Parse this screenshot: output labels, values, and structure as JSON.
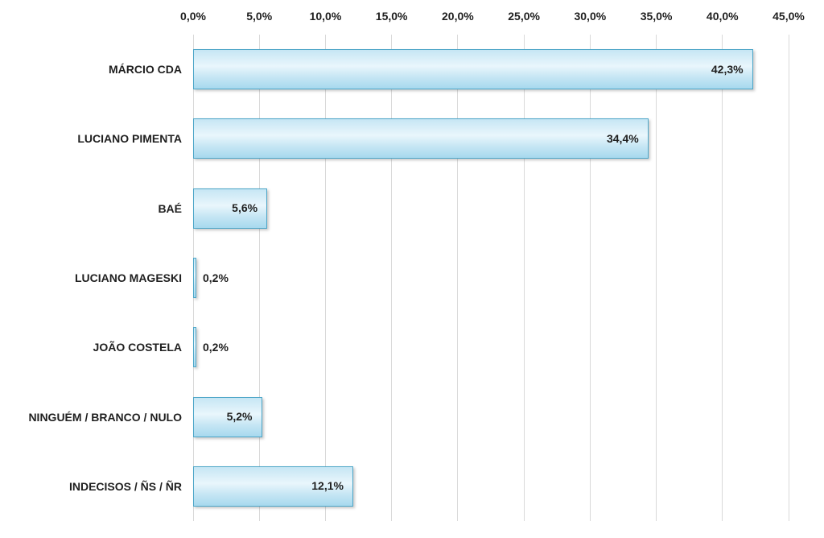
{
  "chart_data": {
    "type": "bar",
    "orientation": "horizontal",
    "title": "",
    "legend": false,
    "grid": true,
    "categories": [
      "MÁRCIO CDA",
      "LUCIANO PIMENTA",
      "BAÉ",
      "LUCIANO MAGESKI",
      "JOÃO COSTELA",
      "NINGUÉM / BRANCO / NULO",
      "INDECISOS / ÑS / ÑR"
    ],
    "values": [
      42.3,
      34.4,
      5.6,
      0.2,
      0.2,
      5.2,
      12.1
    ],
    "value_labels": [
      "42,3%",
      "34,4%",
      "5,6%",
      "0,2%",
      "0,2%",
      "5,2%",
      "12,1%"
    ],
    "x_axis": {
      "position": "top",
      "min": 0,
      "max": 45,
      "ticks": [
        0,
        5,
        10,
        15,
        20,
        25,
        30,
        35,
        40,
        45
      ],
      "tick_labels": [
        "0,0%",
        "5,0%",
        "10,0%",
        "15,0%",
        "20,0%",
        "25,0%",
        "30,0%",
        "35,0%",
        "40,0%",
        "45,0%"
      ]
    },
    "colors": {
      "background": "#ffffff",
      "gridline": "#d9d9d9",
      "text": "#1f1f1f",
      "bar_border": "#4da6c8",
      "bar_fill_top": "#c6e6f4",
      "bar_fill_mid": "#e9f6fc",
      "bar_fill_bottom": "#a7d9ee"
    }
  }
}
